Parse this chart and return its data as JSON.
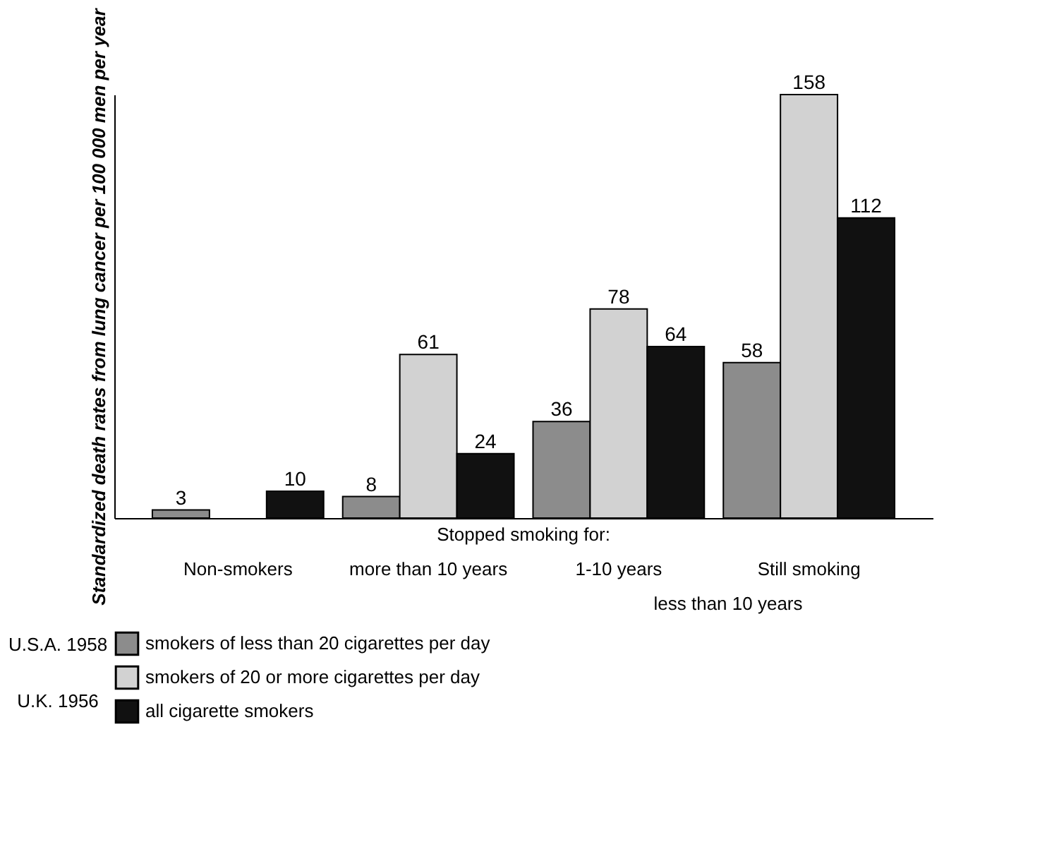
{
  "chart_data": {
    "type": "bar",
    "ylabel": "Standardized death rates from lung cancer per 100 000 men per year",
    "categories": [
      "Non-smokers",
      "more than 10 years",
      "1-10 years",
      "Still smoking"
    ],
    "series": [
      {
        "name": "smokers of less than 20 cigarettes per day",
        "color": "#8c8c8c",
        "values": [
          3,
          8,
          36,
          58
        ]
      },
      {
        "name": "smokers of 20 or more cigarettes per day",
        "color": "#d2d2d2",
        "values": [
          null,
          61,
          78,
          158
        ]
      },
      {
        "name": "all cigarette smokers",
        "color": "#111111",
        "values": [
          10,
          24,
          64,
          112
        ]
      }
    ],
    "annotations": [
      "Stopped smoking for:",
      "less than 10 years",
      "U.S.A. 1958",
      "U.K. 1956"
    ],
    "data_labels": true,
    "tick_labels": "x",
    "grid": false,
    "legend": "bottom left"
  }
}
